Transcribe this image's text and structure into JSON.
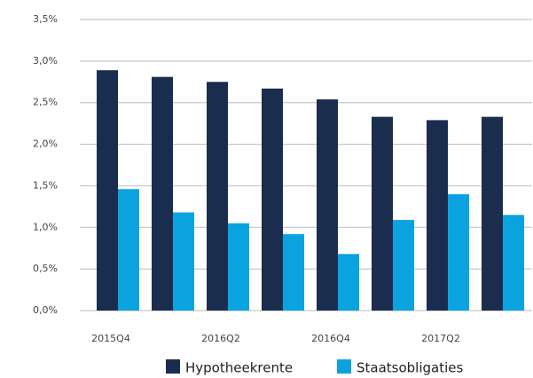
{
  "chart_data": {
    "type": "bar",
    "categories": [
      "2015Q4",
      null,
      "2016Q2",
      null,
      "2016Q4",
      null,
      "2017Q2",
      null
    ],
    "series": [
      {
        "name": "Hypotheekrente",
        "color": "#1b2d4f",
        "values": [
          2.89,
          2.81,
          2.75,
          2.67,
          2.54,
          2.33,
          2.29,
          2.33
        ]
      },
      {
        "name": "Staatsobligaties",
        "color": "#0aa3e0",
        "values": [
          1.46,
          1.18,
          1.05,
          0.92,
          0.68,
          1.09,
          1.4,
          1.15
        ]
      }
    ],
    "ylim": [
      0,
      3.5
    ],
    "yticks": [
      {
        "value": 0,
        "label": "0,0%"
      },
      {
        "value": 0.5,
        "label": "0,5%"
      },
      {
        "value": 1,
        "label": "1,0%"
      },
      {
        "value": 1.5,
        "label": "1,5%"
      },
      {
        "value": 2,
        "label": "2,0%"
      },
      {
        "value": 2.5,
        "label": "2,5%"
      },
      {
        "value": 3,
        "label": "3,0%"
      },
      {
        "value": 3.5,
        "label": "3,5%"
      }
    ],
    "grid": true,
    "legend": "bottom"
  }
}
